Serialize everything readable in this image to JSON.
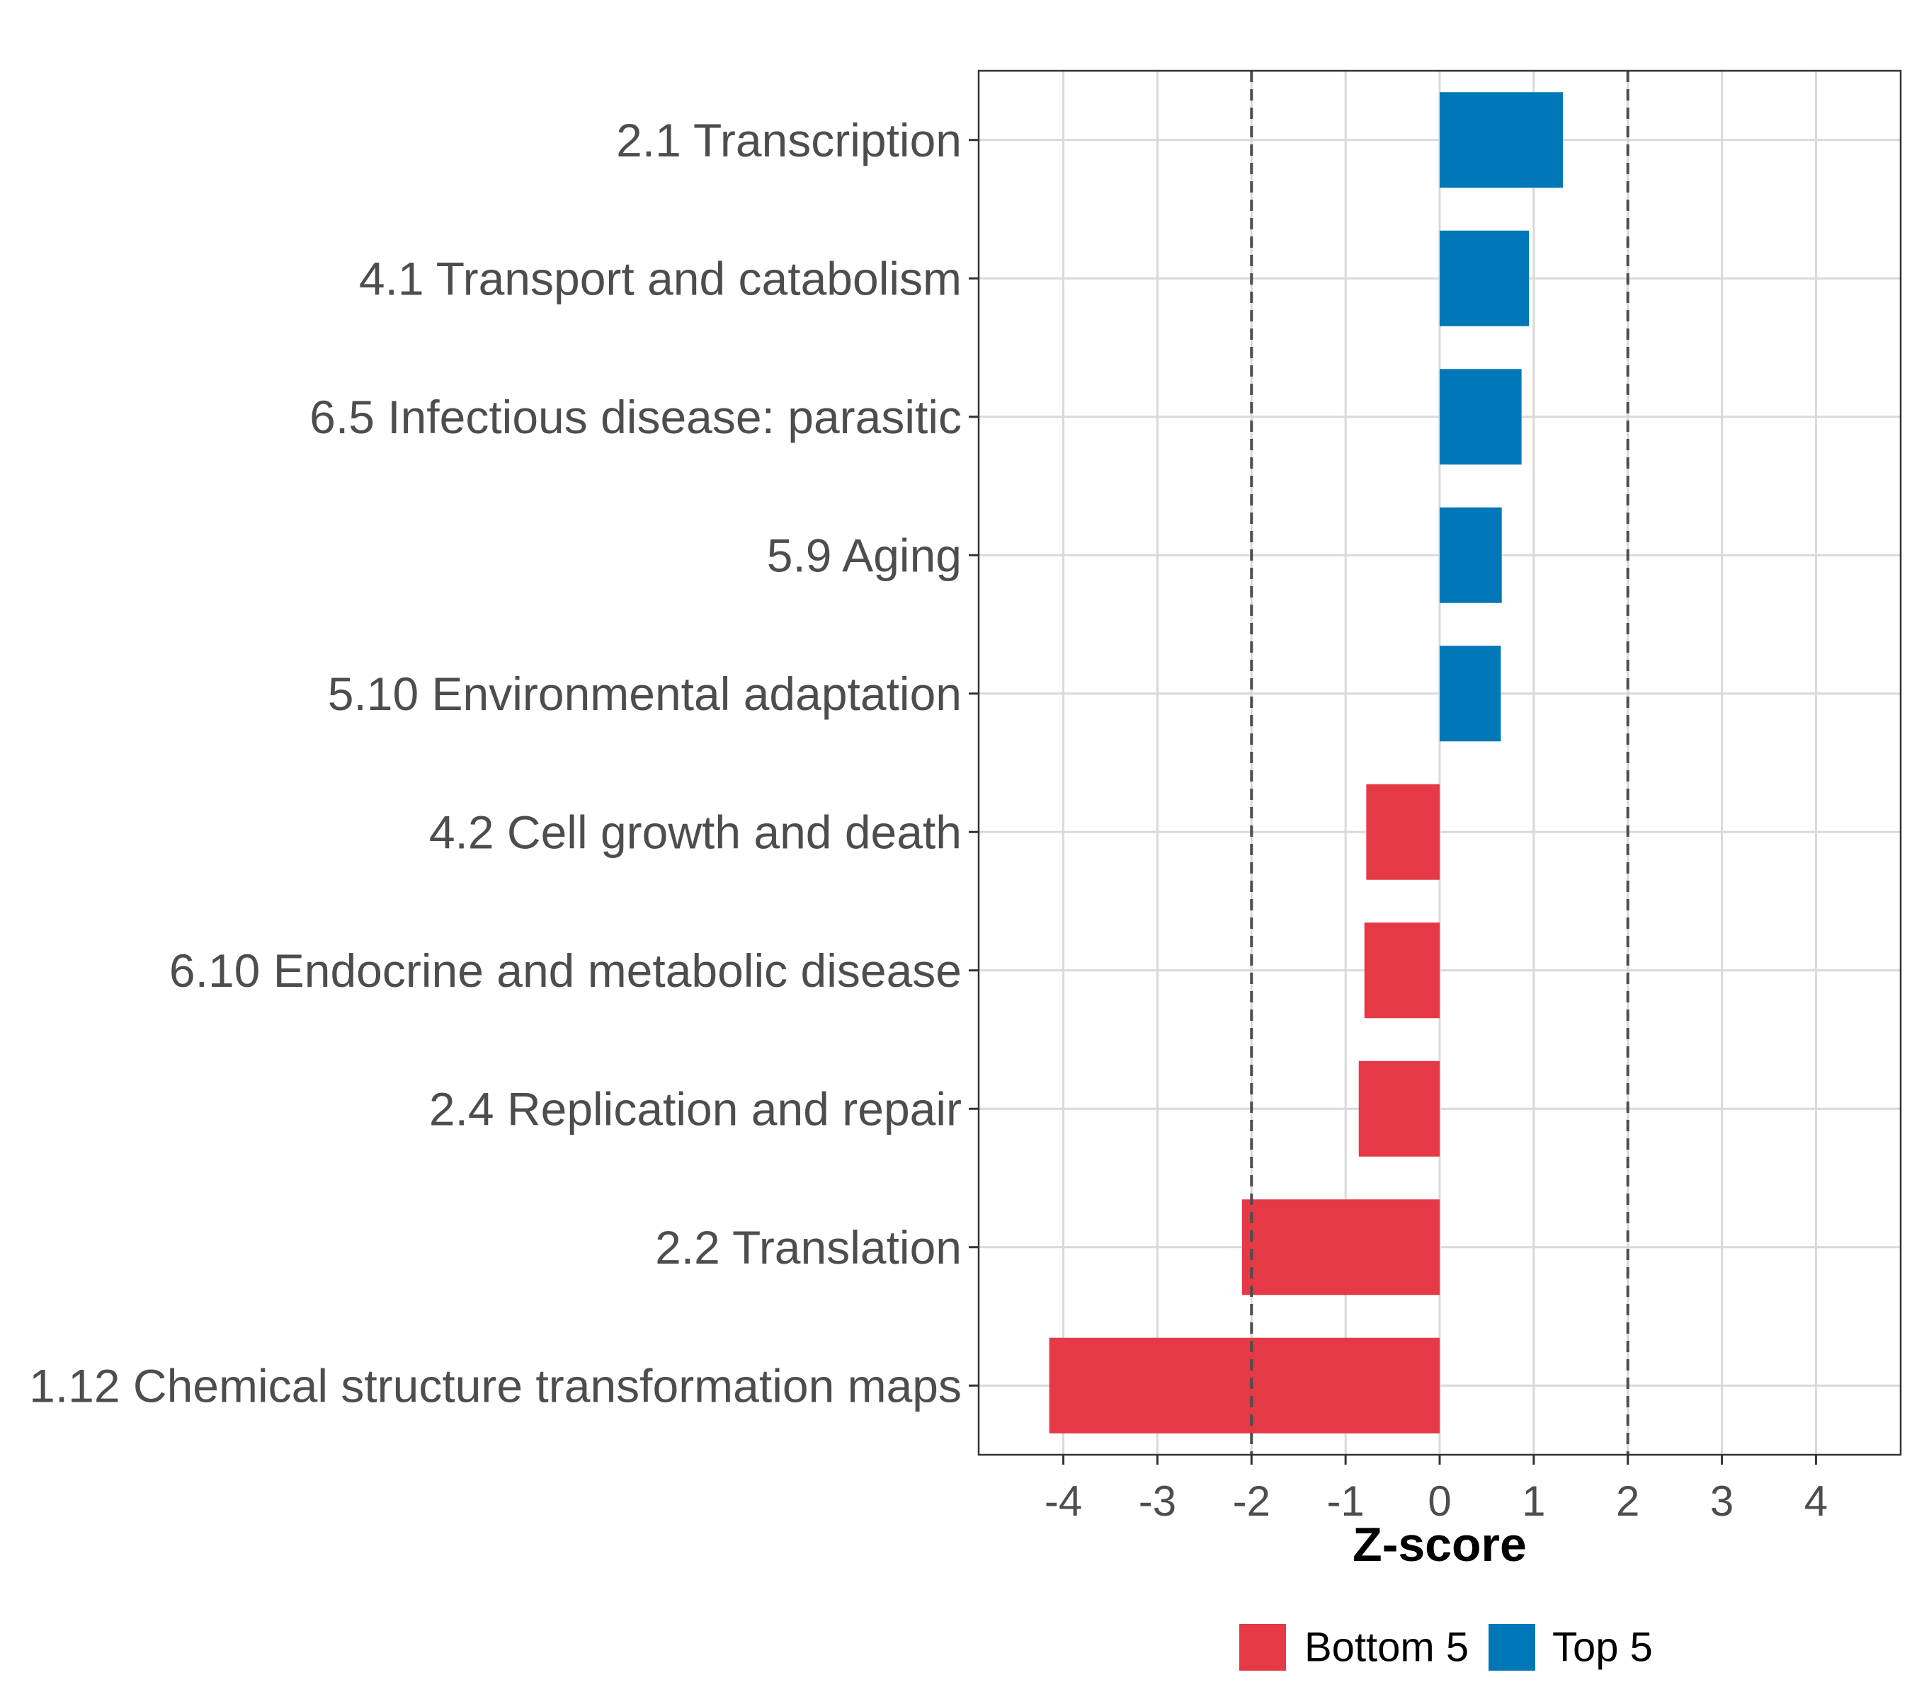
{
  "chart_data": {
    "type": "bar",
    "orientation": "horizontal",
    "title": "",
    "xlabel": "Z-score",
    "ylabel": "",
    "xlim": [
      -4.9,
      4.9
    ],
    "xticks": [
      -4,
      -3,
      -2,
      -1,
      0,
      1,
      2,
      3,
      4
    ],
    "tick_labels": [
      "-4",
      "-3",
      "-2",
      "-1",
      "0",
      "1",
      "2",
      "3",
      "4"
    ],
    "reference_lines": [
      -2,
      2
    ],
    "grid": true,
    "categories": [
      "2.1 Transcription",
      "4.1 Transport and catabolism",
      "6.5 Infectious disease: parasitic",
      "5.9 Aging",
      "5.10 Environmental adaptation",
      "4.2 Cell growth and death",
      "6.10 Endocrine and metabolic disease",
      "2.4 Replication and repair",
      "2.2 Translation",
      "1.12 Chemical structure transformation maps"
    ],
    "values": [
      1.31,
      0.95,
      0.87,
      0.66,
      0.65,
      -0.78,
      -0.8,
      -0.86,
      -2.1,
      -4.15
    ],
    "groups": [
      "Top 5",
      "Top 5",
      "Top 5",
      "Top 5",
      "Top 5",
      "Bottom 5",
      "Bottom 5",
      "Bottom 5",
      "Bottom 5",
      "Bottom 5"
    ],
    "legend": [
      {
        "label": "Bottom 5",
        "color": "#e63946"
      },
      {
        "label": "Top 5",
        "color": "#0077b6"
      }
    ],
    "legend_position": "bottom"
  }
}
